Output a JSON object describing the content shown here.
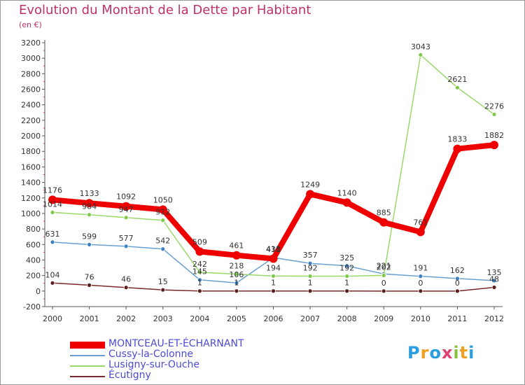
{
  "colors": {
    "title": "#c0306a",
    "legend_text": "#4b4bd8",
    "axis": "#555555"
  },
  "chart_data": {
    "type": "line",
    "title": "Evolution du Montant de la Dette par Habitant",
    "subtitle": "(en €)",
    "xlabel": "",
    "ylabel": "",
    "ylim": [
      -200,
      3200
    ],
    "ytick_step": 200,
    "x": [
      2000,
      2001,
      2002,
      2003,
      2004,
      2005,
      2006,
      2007,
      2008,
      2009,
      2010,
      2011,
      2012
    ],
    "series": [
      {
        "name": "MONTCEAU-ET-ÉCHARNANT",
        "color": "#ee0000",
        "dot": "#ee0000",
        "width": 8,
        "radius": 6,
        "values": [
          1176,
          1133,
          1092,
          1050,
          509,
          461,
          418,
          1249,
          1140,
          885,
          761,
          1833,
          1882
        ],
        "labels": [
          "1176",
          "1133",
          "1092",
          "1050",
          "509",
          "461",
          "418",
          "1249",
          "1140",
          "885",
          "761",
          "1833",
          "1882"
        ]
      },
      {
        "name": "Cussy-la-Colonne",
        "color": "#6aa0cf",
        "dot": "#3d80c0",
        "width": 1.5,
        "radius": 3,
        "values": [
          631,
          599,
          577,
          542,
          145,
          106,
          431,
          357,
          325,
          221,
          191,
          162,
          135
        ],
        "labels": [
          "631",
          "599",
          "577",
          "542",
          "145",
          "106",
          "431",
          "357",
          "325",
          "221",
          "191",
          "162",
          "135"
        ]
      },
      {
        "name": "Lusigny-sur-Ouche",
        "color": "#9ad86a",
        "dot": "#7ec84a",
        "width": 1.5,
        "radius": 3,
        "values": [
          1014,
          984,
          947,
          912,
          242,
          218,
          194,
          192,
          192,
          202,
          3043,
          2621,
          2276
        ],
        "labels": [
          "1014",
          "984",
          "947",
          "912",
          "242",
          "218",
          "194",
          "192",
          "192",
          "202",
          "3043",
          "2621",
          "2276"
        ]
      },
      {
        "name": "Écutigny",
        "color": "#7a2a2a",
        "dot": "#5a1e1e",
        "width": 1.5,
        "radius": 3,
        "values": [
          104,
          76,
          46,
          15,
          1,
          1,
          1,
          1,
          1,
          0,
          0,
          0,
          48
        ],
        "labels": [
          "104",
          "76",
          "46",
          "15",
          "1",
          "1",
          "1",
          "1",
          "1",
          "0",
          "0",
          "0",
          "48"
        ]
      }
    ],
    "legend_position": "bottom-left",
    "grid": false
  },
  "logo": {
    "letters": [
      "P",
      "r",
      "o",
      "x",
      "i",
      "t",
      "i"
    ],
    "colors": [
      "#2a9de0",
      "#f0a020",
      "#2a9de0",
      "#e04070",
      "#8ac040",
      "#f0a020",
      "#2a9de0"
    ]
  }
}
